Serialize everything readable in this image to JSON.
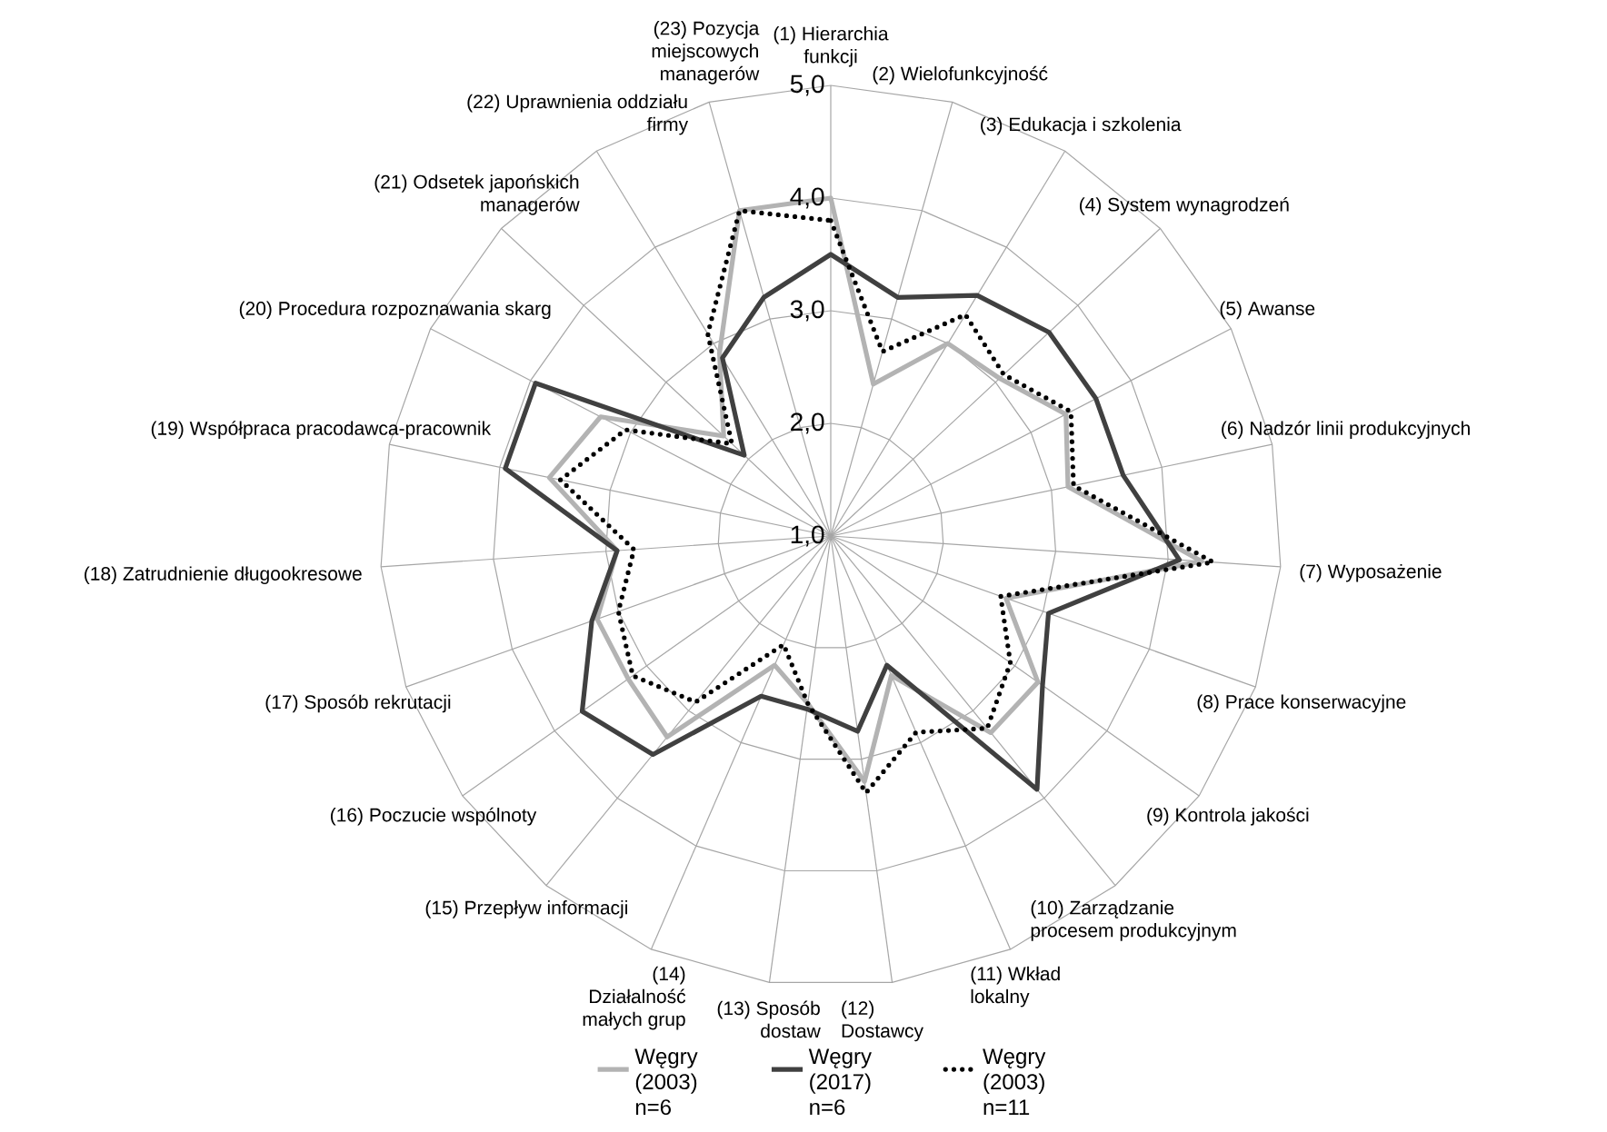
{
  "chart_data": {
    "type": "radar",
    "categories": [
      "(1) Hierarchia funkcji",
      "(2) Wielofunkcyjność",
      "(3) Edukacja i szkolenia",
      "(4) System wynagrodzeń",
      "(5) Awanse",
      "(6) Nadzór linii produkcyjnych",
      "(7) Wyposażenie",
      "(8) Prace konserwacyjne",
      "(9) Kontrola jakości",
      "(10) Zarządzanie procesem produkcyjnym",
      "(11) Wkład lokalny",
      "(12) Dostawcy",
      "(13) Sposób dostaw",
      "(14) Działalność małych grup",
      "(15) Przepływ informacji",
      "(16) Poczucie wspólnoty",
      "(17) Sposób rekrutacji",
      "(18) Zatrudnienie długookresowe",
      "(19) Współpraca pracodawca-pracownik",
      "(20) Procedura rozpoznawania skarg",
      "(21) Odsetek japońskich managerów",
      "(22) Uprawnienia oddziału firmy",
      "(23) Pozycja miejscowych managerów"
    ],
    "series": [
      {
        "name": "Węgry (2003) n=6",
        "color": "#b3b3b3",
        "line_style": "solid",
        "values": [
          4.0,
          2.4,
          3.0,
          3.05,
          3.35,
          3.15,
          4.3,
          2.65,
          3.25,
          3.25,
          2.35,
          3.2,
          2.5,
          2.25,
          3.3,
          3.2,
          3.2,
          2.9,
          3.55,
          3.3,
          2.3,
          2.9,
          4.0
        ]
      },
      {
        "name": "Węgry (2017) n=6",
        "color": "#404040",
        "line_style": "solid",
        "values": [
          3.5,
          3.2,
          3.5,
          3.65,
          3.65,
          3.65,
          4.1,
          3.05,
          3.3,
          3.9,
          2.25,
          2.75,
          2.55,
          2.55,
          3.5,
          3.7,
          3.25,
          2.9,
          3.95,
          3.95,
          2.05,
          2.85,
          3.2
        ]
      },
      {
        "name": "Węgry (2003) n=11",
        "color": "#000000",
        "line_style": "dotted",
        "values": [
          3.8,
          2.7,
          3.3,
          3.1,
          3.4,
          3.2,
          4.4,
          2.6,
          2.95,
          3.2,
          2.9,
          3.3,
          2.5,
          2.05,
          2.9,
          3.15,
          3.0,
          2.75,
          3.45,
          3.05,
          2.2,
          3.1,
          4.0
        ]
      }
    ],
    "ylim": [
      1,
      5
    ],
    "yticks": [
      {
        "value": 1,
        "label": "1,0"
      },
      {
        "value": 2,
        "label": "2,0"
      },
      {
        "value": 3,
        "label": "3,0"
      },
      {
        "value": 4,
        "label": "4,0"
      },
      {
        "value": 5,
        "label": "5,0"
      }
    ],
    "grid": true,
    "legend": "bottom"
  }
}
